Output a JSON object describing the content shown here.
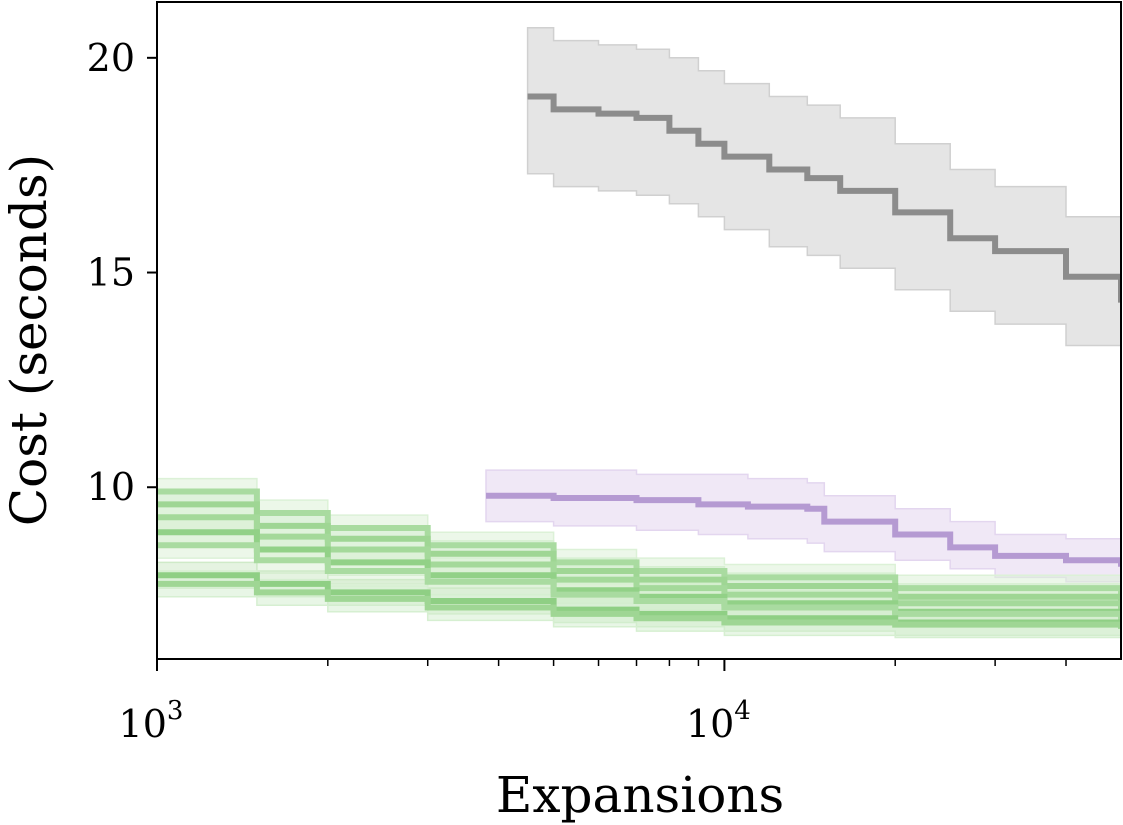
{
  "chart_data": {
    "type": "line",
    "xlabel": "Expansions",
    "ylabel": "Cost (seconds)",
    "xscale": "log",
    "xlim": [
      1000,
      50000
    ],
    "ylim": [
      6.0,
      21.3
    ],
    "grid": false,
    "legend": "none",
    "x_ticks": [
      {
        "value": 1000,
        "base": "10",
        "exp": "3"
      },
      {
        "value": 10000,
        "base": "10",
        "exp": "4"
      }
    ],
    "x_minor_ticks": [
      2000,
      3000,
      4000,
      5000,
      6000,
      7000,
      8000,
      9000,
      20000,
      30000,
      40000
    ],
    "y_ticks": [
      10,
      15,
      20
    ],
    "series": [
      {
        "color": "#8c8c8c",
        "band_color": "#d0d0d0",
        "x": [
          4500,
          5000,
          6000,
          7000,
          8000,
          9000,
          10000,
          12000,
          14000,
          16000,
          20000,
          25000,
          30000,
          40000,
          50000
        ],
        "y": [
          19.1,
          18.8,
          18.7,
          18.6,
          18.3,
          18.0,
          17.7,
          17.4,
          17.2,
          16.9,
          16.4,
          15.8,
          15.5,
          14.9,
          14.3
        ],
        "lower": [
          17.3,
          17.0,
          16.9,
          16.8,
          16.6,
          16.3,
          16.0,
          15.6,
          15.4,
          15.1,
          14.6,
          14.1,
          13.8,
          13.3,
          12.9
        ],
        "upper": [
          20.7,
          20.4,
          20.3,
          20.2,
          20.0,
          19.7,
          19.4,
          19.1,
          18.9,
          18.6,
          18.0,
          17.4,
          17.0,
          16.3,
          15.7
        ]
      },
      {
        "color": "#b59ad2",
        "band_color": "#e3d6ef",
        "x": [
          3800,
          5000,
          7000,
          9000,
          11000,
          14000,
          15000,
          20000,
          25000,
          30000,
          40000,
          50000
        ],
        "y": [
          9.8,
          9.75,
          9.7,
          9.6,
          9.55,
          9.5,
          9.2,
          8.9,
          8.6,
          8.4,
          8.3,
          8.15
        ],
        "lower": [
          9.2,
          9.1,
          9.0,
          8.9,
          8.8,
          8.7,
          8.5,
          8.3,
          8.1,
          7.9,
          7.8,
          7.7
        ],
        "upper": [
          10.4,
          10.4,
          10.3,
          10.3,
          10.2,
          10.1,
          9.8,
          9.5,
          9.2,
          8.9,
          8.8,
          8.6
        ]
      },
      {
        "color": "#a9dba0",
        "band_color": "#dcf1d7",
        "x": [
          1000,
          1500,
          2000,
          3000,
          5000,
          7000,
          10000,
          20000,
          50000
        ],
        "y": [
          9.9,
          9.4,
          9.05,
          8.65,
          8.25,
          8.05,
          7.9,
          7.65,
          7.45
        ],
        "lower": [
          9.6,
          9.1,
          8.75,
          8.35,
          7.95,
          7.75,
          7.6,
          7.35,
          7.15
        ],
        "upper": [
          10.2,
          9.7,
          9.35,
          8.95,
          8.55,
          8.35,
          8.2,
          7.95,
          7.75
        ]
      },
      {
        "color": "#9fd694",
        "band_color": "#d6efd1",
        "x": [
          1000,
          1500,
          2000,
          3000,
          5000,
          7000,
          10000,
          20000,
          50000
        ],
        "y": [
          9.6,
          9.1,
          8.8,
          8.45,
          8.05,
          7.85,
          7.7,
          7.45,
          7.25
        ],
        "lower": [
          9.3,
          8.8,
          8.5,
          8.15,
          7.75,
          7.55,
          7.4,
          7.15,
          6.95
        ],
        "upper": [
          9.9,
          9.4,
          9.1,
          8.75,
          8.35,
          8.15,
          8.0,
          7.75,
          7.55
        ]
      },
      {
        "color": "#a4d99a",
        "band_color": "#d9f0d4",
        "x": [
          1000,
          1500,
          2000,
          3000,
          5000,
          7000,
          10000,
          20000,
          50000
        ],
        "y": [
          9.3,
          8.85,
          8.55,
          8.2,
          7.85,
          7.65,
          7.5,
          7.3,
          7.1
        ],
        "lower": [
          9.0,
          8.55,
          8.25,
          7.9,
          7.55,
          7.35,
          7.2,
          7.0,
          6.8
        ],
        "upper": [
          9.6,
          9.15,
          8.85,
          8.5,
          8.15,
          7.95,
          7.8,
          7.6,
          7.4
        ]
      },
      {
        "color": "#92d187",
        "band_color": "#d2edcc",
        "x": [
          1000,
          1500,
          2000,
          3000,
          5000,
          7000,
          10000,
          20000,
          50000
        ],
        "y": [
          8.95,
          8.55,
          8.25,
          7.95,
          7.6,
          7.45,
          7.3,
          7.1,
          6.95
        ],
        "lower": [
          8.65,
          8.25,
          7.95,
          7.65,
          7.3,
          7.15,
          7.0,
          6.8,
          6.65
        ],
        "upper": [
          9.25,
          8.85,
          8.55,
          8.25,
          7.9,
          7.75,
          7.6,
          7.4,
          7.25
        ]
      },
      {
        "color": "#a9dba0",
        "band_color": "#dcf1d7",
        "x": [
          1000,
          1500,
          2000,
          3000,
          5000,
          7000,
          10000,
          20000,
          50000
        ],
        "y": [
          8.65,
          8.3,
          8.05,
          7.8,
          7.5,
          7.35,
          7.2,
          7.05,
          6.9
        ],
        "lower": [
          8.35,
          8.0,
          7.75,
          7.5,
          7.2,
          7.05,
          6.9,
          6.75,
          6.6
        ],
        "upper": [
          8.95,
          8.6,
          8.35,
          8.1,
          7.8,
          7.65,
          7.5,
          7.35,
          7.2
        ]
      },
      {
        "color": "#8fcf84",
        "band_color": "#cfeac8",
        "x": [
          1000,
          1500,
          2000,
          3000,
          5000,
          7000,
          10000,
          20000,
          50000
        ],
        "y": [
          7.95,
          7.75,
          7.55,
          7.35,
          7.15,
          7.05,
          6.95,
          6.85,
          6.75
        ],
        "lower": [
          7.65,
          7.45,
          7.25,
          7.05,
          6.85,
          6.75,
          6.65,
          6.55,
          6.45
        ],
        "upper": [
          8.25,
          8.05,
          7.85,
          7.65,
          7.45,
          7.35,
          7.25,
          7.15,
          7.05
        ]
      },
      {
        "color": "#9fd694",
        "band_color": "#d6efd1",
        "x": [
          1000,
          1500,
          2000,
          3000,
          5000,
          7000,
          10000,
          20000,
          50000
        ],
        "y": [
          7.75,
          7.55,
          7.4,
          7.2,
          7.05,
          6.95,
          6.85,
          6.8,
          6.7
        ],
        "lower": [
          7.45,
          7.25,
          7.1,
          6.9,
          6.75,
          6.65,
          6.55,
          6.5,
          6.4
        ],
        "upper": [
          8.05,
          7.85,
          7.7,
          7.5,
          7.35,
          7.25,
          7.15,
          7.1,
          7.0
        ]
      }
    ]
  }
}
